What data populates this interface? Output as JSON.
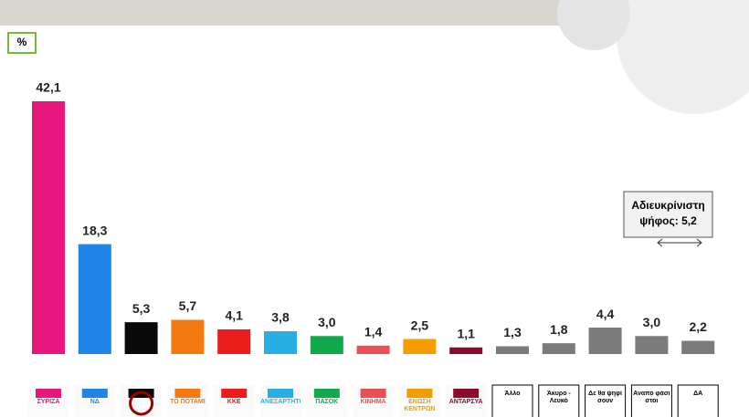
{
  "chart_data": {
    "type": "bar",
    "unit_label": "%",
    "annotation": "Αδιευκρίνιστη ψήφος: 5,2",
    "categories": [
      "ΣΥΡΙΖΑ",
      "ΝΔ",
      null,
      "ΤΟ ΠΟΤΑΜΙ",
      "ΚΚΕ",
      "ΑΝΕΞΑΡΤΗΤΟΙ",
      "ΠΑΣΟΚ",
      "ΚΙΝΗΜΑ",
      "ΕΝΩΣΗ ΚΕΝΤΡΩΝ",
      "ΑΝΤΑΡΣΥΑ",
      "Άλλο",
      "Άκυρο - Λευκό",
      "Δε θα ψηφί σουν",
      "Αναπο φάσι στοι",
      "ΔΑ"
    ],
    "values": [
      42.1,
      18.3,
      5.3,
      5.7,
      4.1,
      3.8,
      3.0,
      1.4,
      2.5,
      1.1,
      1.3,
      1.8,
      4.4,
      3.0,
      2.2
    ],
    "value_labels": [
      "42,1",
      "18,3",
      "5,3",
      "5,7",
      "4,1",
      "3,8",
      "3,0",
      "1,4",
      "2,5",
      "1,1",
      "1,3",
      "1,8",
      "4,4",
      "3,0",
      "2,2"
    ],
    "colors": [
      "#e8177d",
      "#1f86e8",
      "#0a0a0a",
      "#f47a10",
      "#ec1c1c",
      "#27aee3",
      "#11a84b",
      "#ea4f55",
      "#f59c00",
      "#8c0b2c",
      "#7b7b7b",
      "#7b7b7b",
      "#7b7b7b",
      "#7b7b7b",
      "#7b7b7b"
    ]
  }
}
